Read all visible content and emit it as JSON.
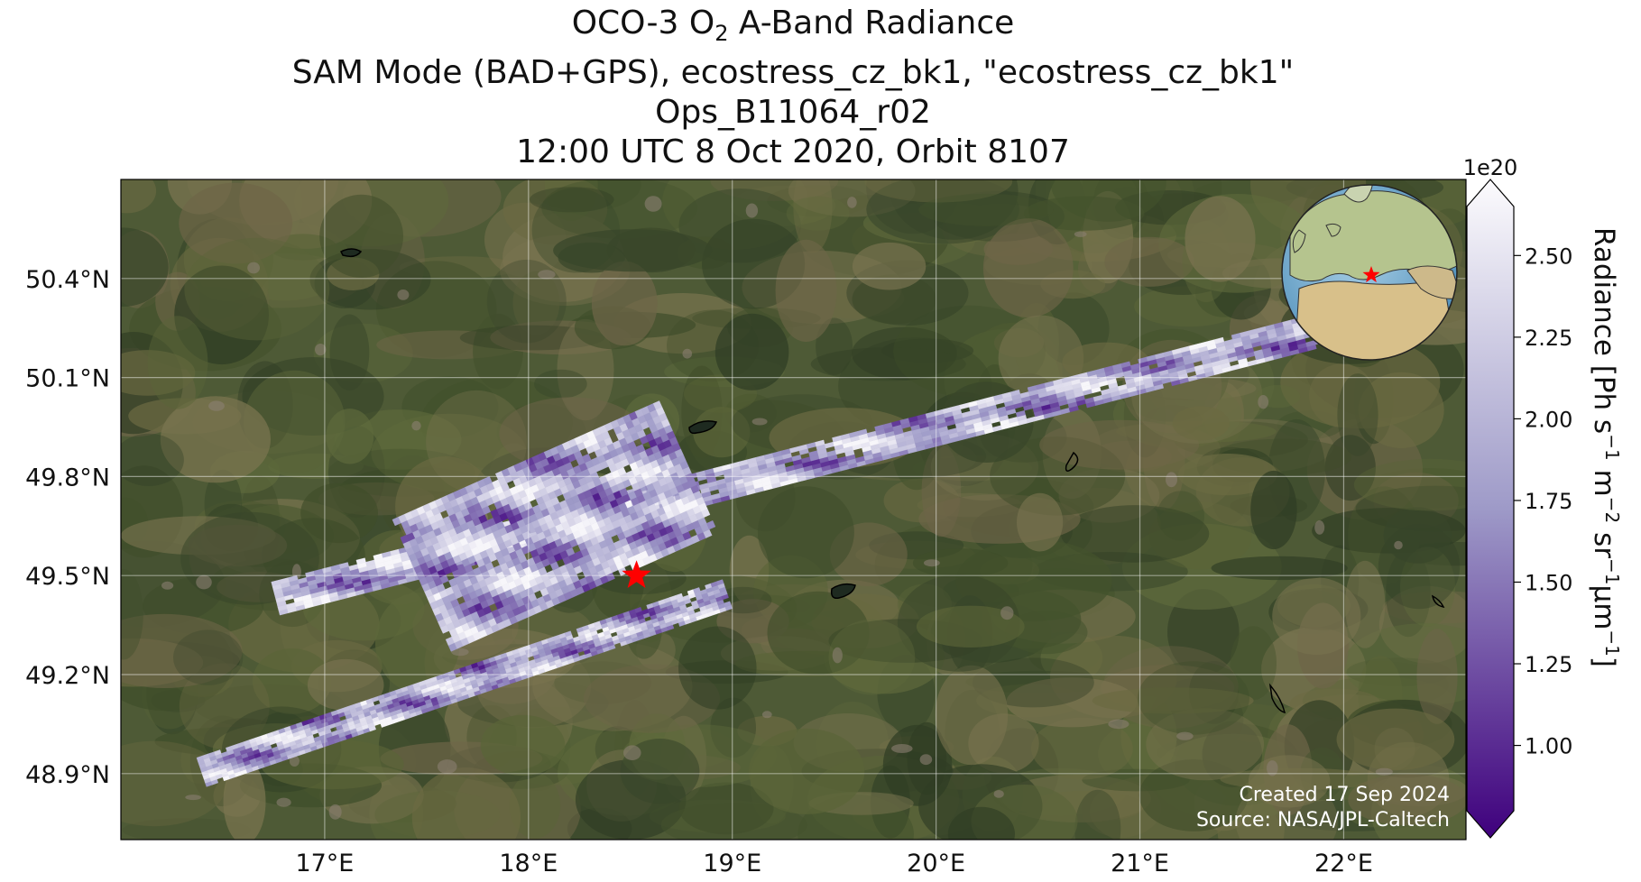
{
  "title": {
    "line1_pre": "OCO-3 O",
    "line1_sub": "2",
    "line1_post": " A-Band Radiance",
    "line2": "SAM Mode (BAD+GPS), ecostress_cz_bk1, \"ecostress_cz_bk1\"",
    "line3": "Ops_B11064_r02",
    "line4": "12:00 UTC 8 Oct 2020, Orbit 8107"
  },
  "map": {
    "basemap": "satellite imagery",
    "lon_range": [
      16.0,
      22.6
    ],
    "lat_range": [
      48.7,
      50.7
    ],
    "lon_ticks": [
      17,
      18,
      19,
      20,
      21,
      22
    ],
    "lon_tick_labels": [
      "17°E",
      "18°E",
      "19°E",
      "20°E",
      "21°E",
      "22°E"
    ],
    "lat_ticks": [
      48.9,
      49.2,
      49.5,
      49.8,
      50.1,
      50.4
    ],
    "lat_tick_labels": [
      "48.9°N",
      "49.2°N",
      "49.5°N",
      "49.8°N",
      "50.1°N",
      "50.4°N"
    ],
    "grid": true,
    "target": {
      "lon": 18.53,
      "lat": 49.5,
      "marker": "star-icon",
      "color": "#ff0000"
    },
    "inset": "globe-icon"
  },
  "colorbar": {
    "multiplier": "1e20",
    "label_main": "Radiance [Ph s",
    "vmin": 0.8,
    "vmax": 2.65,
    "ticks": [
      1.0,
      1.25,
      1.5,
      1.75,
      2.0,
      2.25,
      2.5
    ],
    "tick_labels": [
      "1.00",
      "1.25",
      "1.50",
      "1.75",
      "2.00",
      "2.25",
      "2.50"
    ],
    "cmap_low": "#3f007d",
    "cmap_mid": "#9e9ac8",
    "cmap_high": "#fcfbfd"
  },
  "credits": {
    "created": "Created 17 Sep 2024",
    "source": "Source: NASA/JPL-Caltech"
  },
  "chart_data": {
    "type": "heatmap",
    "title": "OCO-3 O2 A-Band Radiance",
    "units": "Ph s-1 m-2 sr-1 µm-1 (×1e20)",
    "swaths": [
      {
        "name": "swath-upper",
        "start": [
          16.78,
          49.38
        ],
        "end": [
          22.2,
          50.24
        ],
        "value_min": 0.9,
        "value_max": 2.6
      },
      {
        "name": "swath-middle",
        "start": [
          17.62,
          49.27
        ],
        "end": [
          18.93,
          49.63
        ],
        "value_min": 0.9,
        "value_max": 2.6
      },
      {
        "name": "swath-lower",
        "start": [
          16.42,
          48.86
        ],
        "end": [
          19.0,
          49.4
        ],
        "value_min": 0.9,
        "value_max": 2.6
      }
    ]
  }
}
